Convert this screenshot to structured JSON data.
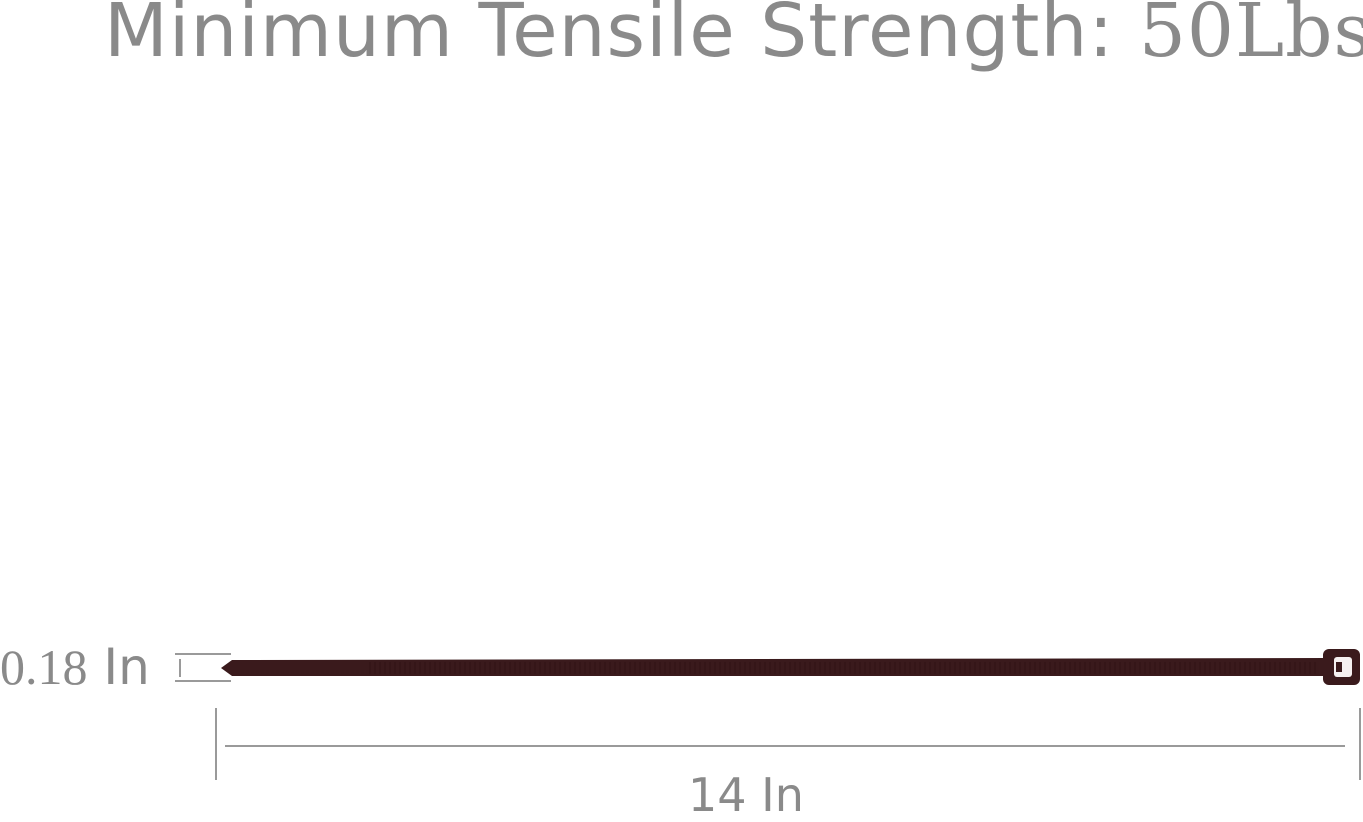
{
  "title": {
    "label": "Minimum Tensile Strength:",
    "value": "50Lbs"
  },
  "dimensions": {
    "width": {
      "value": "0.18",
      "unit": "In"
    },
    "length": "14 In"
  },
  "colors": {
    "text": "#8a8a8a",
    "cable_tie": "#3a1a1c",
    "lines": "#9a9a9a"
  }
}
